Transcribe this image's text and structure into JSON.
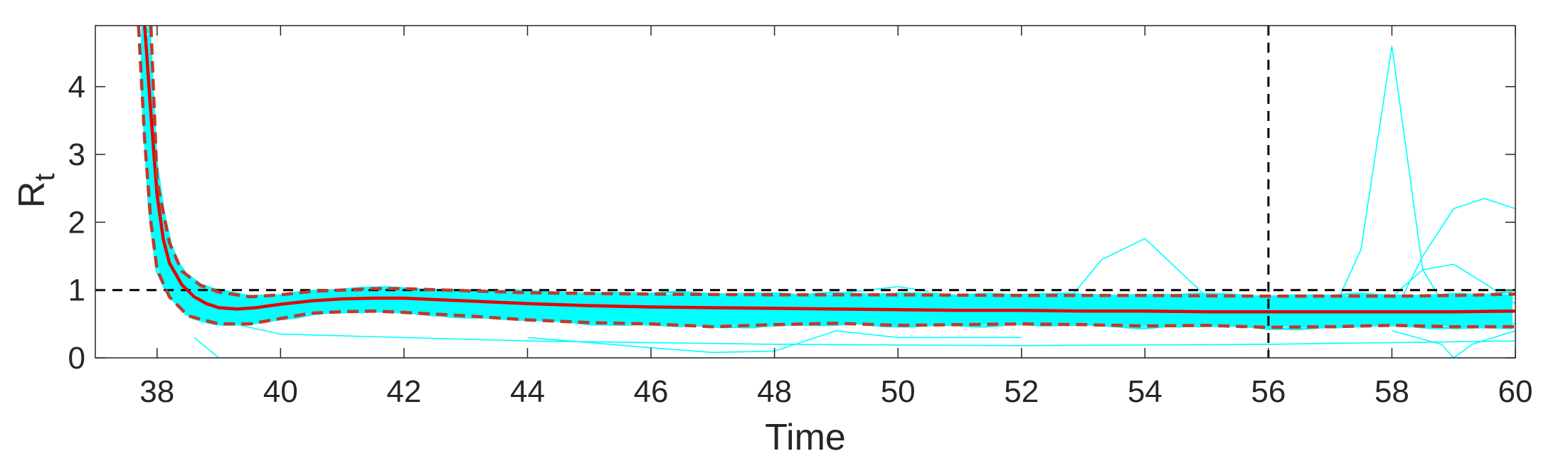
{
  "chart_data": {
    "type": "line",
    "xlabel": "Time",
    "ylabel": "R",
    "ylabel_subscript": "t",
    "xlim": [
      37,
      60
    ],
    "ylim": [
      0,
      4.9
    ],
    "xticks": [
      38,
      40,
      42,
      44,
      46,
      48,
      50,
      52,
      54,
      56,
      58,
      60
    ],
    "yticks": [
      0,
      1,
      2,
      3,
      4
    ],
    "x_tick_labels": [
      "38",
      "40",
      "42",
      "44",
      "46",
      "48",
      "50",
      "52",
      "54",
      "56",
      "58",
      "60"
    ],
    "y_tick_labels": [
      "0",
      "1",
      "2",
      "3",
      "4"
    ],
    "grid": false,
    "reference_lines": {
      "horizontal_y": 1,
      "vertical_x": 56
    },
    "series": [
      {
        "role": "mean",
        "x": [
          37.8,
          37.9,
          38.0,
          38.1,
          38.2,
          38.4,
          38.6,
          38.8,
          39.0,
          39.3,
          39.6,
          40.0,
          40.5,
          41.0,
          41.5,
          42.0,
          43.0,
          44.0,
          45.0,
          46.0,
          47.0,
          48.0,
          49.0,
          50.0,
          51.0,
          52.0,
          53.0,
          54.0,
          55.0,
          56.0,
          57.0,
          58.0,
          59.0,
          60.0
        ],
        "y": [
          4.9,
          3.6,
          2.4,
          1.75,
          1.4,
          1.08,
          0.9,
          0.8,
          0.74,
          0.72,
          0.74,
          0.79,
          0.84,
          0.87,
          0.88,
          0.88,
          0.84,
          0.8,
          0.77,
          0.75,
          0.74,
          0.73,
          0.72,
          0.71,
          0.7,
          0.7,
          0.69,
          0.69,
          0.68,
          0.68,
          0.68,
          0.68,
          0.68,
          0.69
        ]
      },
      {
        "role": "upper-bound",
        "x": [
          37.9,
          38.0,
          38.2,
          38.4,
          38.7,
          39.0,
          39.5,
          40.0,
          40.5,
          41.0,
          41.5,
          42.0,
          43.0,
          44.0,
          46.0,
          48.0,
          50.0,
          52.0,
          54.0,
          56.0,
          57.0,
          58.0,
          59.0,
          60.0
        ],
        "y": [
          4.9,
          2.6,
          1.7,
          1.28,
          1.07,
          0.97,
          0.9,
          0.93,
          0.98,
          1.0,
          1.02,
          1.02,
          0.99,
          0.96,
          0.94,
          0.93,
          0.93,
          0.92,
          0.92,
          0.91,
          0.91,
          0.91,
          0.92,
          0.94
        ]
      },
      {
        "role": "lower-bound",
        "x": [
          37.7,
          37.8,
          37.9,
          38.0,
          38.2,
          38.5,
          39.0,
          39.5,
          40.0,
          40.5,
          41.0,
          41.5,
          42.0,
          43.0,
          44.0,
          45.0,
          46.0,
          47.0,
          48.0,
          49.0,
          50.0,
          51.0,
          52.0,
          53.0,
          54.0,
          55.0,
          56.0,
          57.0,
          58.0,
          59.0,
          60.0
        ],
        "y": [
          4.9,
          3.2,
          2.0,
          1.3,
          0.9,
          0.62,
          0.5,
          0.5,
          0.58,
          0.66,
          0.68,
          0.69,
          0.67,
          0.62,
          0.56,
          0.52,
          0.5,
          0.46,
          0.49,
          0.51,
          0.48,
          0.49,
          0.5,
          0.49,
          0.47,
          0.48,
          0.45,
          0.46,
          0.48,
          0.46,
          0.46
        ]
      }
    ],
    "ensemble_outliers": [
      {
        "x": [
          52.0,
          52.8,
          53.3,
          54.0,
          55.0
        ],
        "y": [
          0.7,
          0.9,
          1.45,
          1.76,
          0.9
        ]
      },
      {
        "x": [
          56.5,
          57.0,
          57.5,
          58.0,
          58.5,
          59.0,
          59.5,
          60.0
        ],
        "y": [
          0.5,
          0.6,
          1.6,
          4.6,
          1.3,
          0.55,
          0.6,
          0.5
        ]
      },
      {
        "x": [
          58.0,
          58.5,
          59.0,
          59.5,
          60.0
        ],
        "y": [
          0.6,
          1.5,
          2.2,
          2.35,
          2.2
        ]
      },
      {
        "x": [
          58.0,
          58.5,
          59.0,
          59.5,
          60.0
        ],
        "y": [
          0.9,
          1.3,
          1.38,
          1.1,
          0.8
        ]
      },
      {
        "x": [
          58.0,
          58.4,
          58.8,
          59.0,
          59.3,
          60.0
        ],
        "y": [
          0.4,
          0.3,
          0.2,
          0.0,
          0.2,
          0.4
        ]
      },
      {
        "x": [
          39.0,
          40.0,
          44.0,
          48.0,
          52.0,
          56.0,
          60.0
        ],
        "y": [
          0.55,
          0.35,
          0.25,
          0.2,
          0.18,
          0.2,
          0.25
        ]
      },
      {
        "x": [
          38.6,
          39.0,
          40.0,
          44.0,
          48.0,
          52.0,
          56.0,
          60.0
        ],
        "y": [
          0.3,
          0.0,
          0.0,
          0.0,
          0.0,
          0.0,
          0.0,
          0.0
        ]
      },
      {
        "x": [
          44.0,
          46.0,
          47.0,
          48.0,
          49.0,
          50.0,
          52.0
        ],
        "y": [
          0.3,
          0.15,
          0.08,
          0.1,
          0.4,
          0.3,
          0.3
        ]
      },
      {
        "x": [
          49.0,
          49.5,
          50.0,
          50.5
        ],
        "y": [
          0.95,
          1.0,
          1.05,
          0.98
        ]
      }
    ],
    "colors": {
      "ensemble": "#00ffff",
      "mean": "#e60000",
      "bounds": "#c0392b",
      "reference": "#000000",
      "axis": "#262626"
    }
  }
}
